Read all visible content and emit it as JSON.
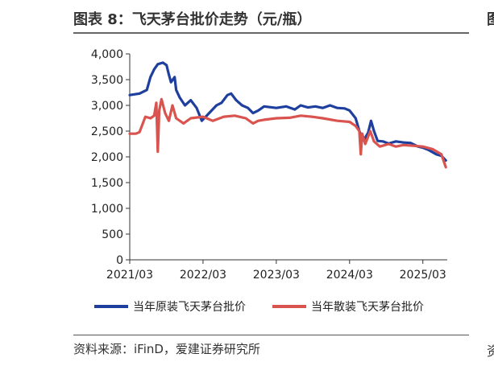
{
  "header": {
    "title": "图表 8：飞天茅台批价走势（元/瓶）",
    "edge_top_glyph": "图",
    "edge_bottom_glyph": "资"
  },
  "footer": {
    "source": "资料来源：iFinD，爱建证券研究所"
  },
  "colors": {
    "original": "#1f3f9e",
    "loose": "#d9534f",
    "axis": "#333333"
  },
  "chart_data": {
    "type": "line",
    "title": "飞天茅台批价走势（元/瓶）",
    "xlabel": "",
    "ylabel": "",
    "x_range": [
      2021.167,
      2025.5
    ],
    "ylim": [
      0,
      4000
    ],
    "y_ticks": [
      0,
      500,
      1000,
      1500,
      2000,
      2500,
      3000,
      3500,
      4000
    ],
    "y_tick_labels": [
      "0",
      "500",
      "1,000",
      "1,500",
      "2,000",
      "2,500",
      "3,000",
      "3,500",
      "4,000"
    ],
    "x_ticks": [
      2021.167,
      2022.167,
      2023.167,
      2024.167,
      2025.167
    ],
    "x_tick_labels": [
      "2021/03",
      "2022/03",
      "2023/03",
      "2024/03",
      "2025/03"
    ],
    "grid": false,
    "legend_position": "bottom",
    "series": [
      {
        "name": "当年原装飞天茅台批价",
        "color": "#1f3f9e",
        "points": [
          [
            2021.167,
            3200
          ],
          [
            2021.3,
            3230
          ],
          [
            2021.4,
            3300
          ],
          [
            2021.45,
            3550
          ],
          [
            2021.5,
            3700
          ],
          [
            2021.55,
            3800
          ],
          [
            2021.62,
            3830
          ],
          [
            2021.67,
            3780
          ],
          [
            2021.7,
            3600
          ],
          [
            2021.73,
            3450
          ],
          [
            2021.78,
            3550
          ],
          [
            2021.8,
            3300
          ],
          [
            2021.85,
            3150
          ],
          [
            2021.92,
            3000
          ],
          [
            2022.0,
            3100
          ],
          [
            2022.08,
            2950
          ],
          [
            2022.15,
            2700
          ],
          [
            2022.25,
            2850
          ],
          [
            2022.35,
            3000
          ],
          [
            2022.42,
            3050
          ],
          [
            2022.5,
            3200
          ],
          [
            2022.55,
            3230
          ],
          [
            2022.62,
            3100
          ],
          [
            2022.7,
            3000
          ],
          [
            2022.78,
            2950
          ],
          [
            2022.85,
            2850
          ],
          [
            2022.92,
            2900
          ],
          [
            2023.0,
            2980
          ],
          [
            2023.167,
            2950
          ],
          [
            2023.3,
            2980
          ],
          [
            2023.42,
            2920
          ],
          [
            2023.5,
            3000
          ],
          [
            2023.6,
            2960
          ],
          [
            2023.7,
            2980
          ],
          [
            2023.8,
            2950
          ],
          [
            2023.9,
            3000
          ],
          [
            2024.0,
            2950
          ],
          [
            2024.1,
            2940
          ],
          [
            2024.167,
            2900
          ],
          [
            2024.25,
            2750
          ],
          [
            2024.3,
            2500
          ],
          [
            2024.36,
            2320
          ],
          [
            2024.42,
            2470
          ],
          [
            2024.46,
            2700
          ],
          [
            2024.5,
            2500
          ],
          [
            2024.55,
            2310
          ],
          [
            2024.62,
            2300
          ],
          [
            2024.7,
            2260
          ],
          [
            2024.8,
            2300
          ],
          [
            2024.9,
            2280
          ],
          [
            2025.0,
            2270
          ],
          [
            2025.1,
            2200
          ],
          [
            2025.167,
            2180
          ],
          [
            2025.25,
            2130
          ],
          [
            2025.35,
            2050
          ],
          [
            2025.42,
            2020
          ],
          [
            2025.48,
            1930
          ]
        ]
      },
      {
        "name": "当年散装飞天茅台批价",
        "color": "#d9534f",
        "points": [
          [
            2021.167,
            2450
          ],
          [
            2021.25,
            2450
          ],
          [
            2021.3,
            2480
          ],
          [
            2021.38,
            2780
          ],
          [
            2021.45,
            2750
          ],
          [
            2021.5,
            2800
          ],
          [
            2021.53,
            3050
          ],
          [
            2021.55,
            2100
          ],
          [
            2021.57,
            2900
          ],
          [
            2021.6,
            3120
          ],
          [
            2021.65,
            2850
          ],
          [
            2021.7,
            2700
          ],
          [
            2021.75,
            3000
          ],
          [
            2021.8,
            2750
          ],
          [
            2021.9,
            2650
          ],
          [
            2022.0,
            2750
          ],
          [
            2022.167,
            2780
          ],
          [
            2022.3,
            2700
          ],
          [
            2022.45,
            2780
          ],
          [
            2022.6,
            2800
          ],
          [
            2022.75,
            2750
          ],
          [
            2022.85,
            2650
          ],
          [
            2022.92,
            2700
          ],
          [
            2023.0,
            2720
          ],
          [
            2023.167,
            2750
          ],
          [
            2023.35,
            2760
          ],
          [
            2023.5,
            2800
          ],
          [
            2023.65,
            2780
          ],
          [
            2023.8,
            2750
          ],
          [
            2024.0,
            2700
          ],
          [
            2024.167,
            2680
          ],
          [
            2024.25,
            2600
          ],
          [
            2024.3,
            2500
          ],
          [
            2024.32,
            2050
          ],
          [
            2024.34,
            2450
          ],
          [
            2024.38,
            2250
          ],
          [
            2024.45,
            2500
          ],
          [
            2024.5,
            2300
          ],
          [
            2024.58,
            2200
          ],
          [
            2024.7,
            2250
          ],
          [
            2024.8,
            2200
          ],
          [
            2024.9,
            2230
          ],
          [
            2025.0,
            2220
          ],
          [
            2025.167,
            2200
          ],
          [
            2025.3,
            2150
          ],
          [
            2025.42,
            2050
          ],
          [
            2025.48,
            1800
          ]
        ]
      }
    ]
  }
}
